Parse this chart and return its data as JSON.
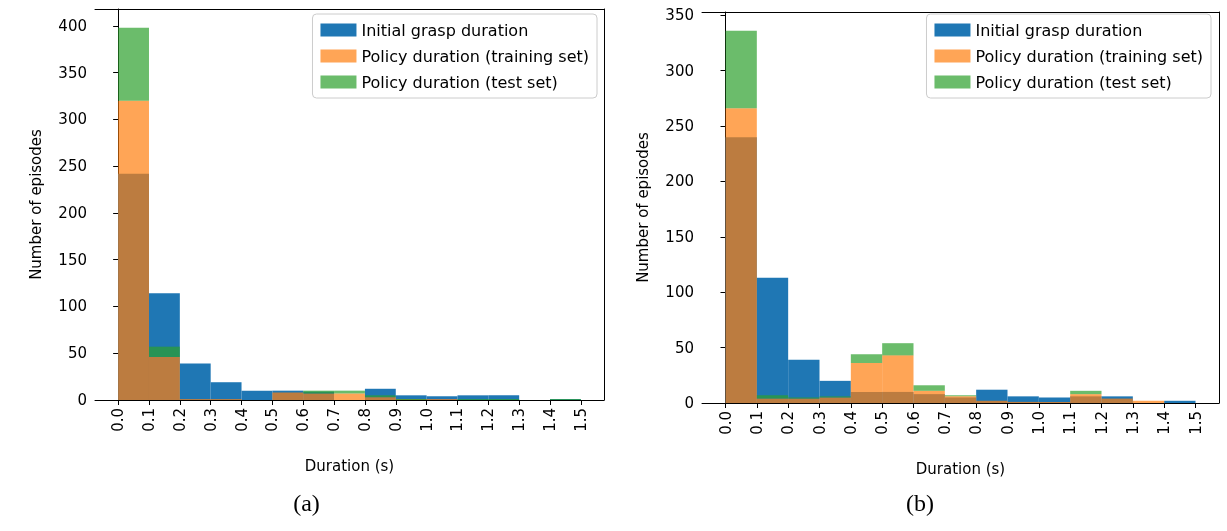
{
  "chart_data": [
    {
      "type": "histogram",
      "xlabel": "Duration (s)",
      "ylabel": "Number of episodes",
      "annotations": [
        "(a)"
      ],
      "bins": [
        0,
        0.1,
        0.2,
        0.3,
        0.4,
        0.5,
        0.6,
        0.7,
        0.8,
        0.9,
        1.0,
        1.1,
        1.2,
        1.3,
        1.4,
        1.5
      ],
      "series": [
        {
          "name": "Initial grasp duration",
          "color": "#1f77b4",
          "values": [
            242,
            114,
            39,
            19,
            10,
            10,
            9,
            null,
            12,
            5,
            4,
            5,
            5,
            0,
            1
          ]
        },
        {
          "name": "Policy duration (training set)",
          "color": "#ff7f0e",
          "values": [
            320,
            46,
            1,
            1,
            0,
            8,
            7,
            7,
            3,
            1,
            1,
            0,
            0,
            0,
            0
          ]
        },
        {
          "name": "Policy duration (test set)",
          "color": "#2ca02c",
          "base": [
            320,
            46,
            null,
            null,
            null,
            null,
            7,
            7,
            3,
            null,
            null,
            null,
            null,
            null,
            null
          ],
          "values": [
            78,
            11,
            0,
            0,
            0,
            0,
            3,
            3,
            2,
            1,
            0,
            1,
            1,
            0,
            1
          ]
        }
      ],
      "xlim": [
        -0.075,
        1.575
      ],
      "ylim": [
        0,
        418
      ],
      "xticks": [
        {
          "value": 0,
          "label": "0.0"
        },
        {
          "value": 0.1,
          "label": "0.1"
        },
        {
          "value": 0.2,
          "label": "0.2"
        },
        {
          "value": 0.3,
          "label": "0.3"
        },
        {
          "value": 0.4,
          "label": "0.4"
        },
        {
          "value": 0.5,
          "label": "0.5"
        },
        {
          "value": 0.6,
          "label": "0.6"
        },
        {
          "value": 0.7,
          "label": "0.7"
        },
        {
          "value": 0.8,
          "label": "0.8"
        },
        {
          "value": 0.9,
          "label": "0.9"
        },
        {
          "value": 1.0,
          "label": "1.0"
        },
        {
          "value": 1.1,
          "label": "1.1"
        },
        {
          "value": 1.2,
          "label": "1.2"
        },
        {
          "value": 1.3,
          "label": "1.3"
        },
        {
          "value": 1.4,
          "label": "1.4"
        },
        {
          "value": 1.5,
          "label": "1.5"
        }
      ],
      "yticks": [
        0,
        50,
        100,
        150,
        200,
        250,
        300,
        350,
        400
      ],
      "legend": "top right",
      "grid": false
    },
    {
      "type": "histogram",
      "xlabel": "Duration (s)",
      "ylabel": "Number of episodes",
      "annotations": [
        "(b)"
      ],
      "bins": [
        0,
        0.1,
        0.2,
        0.3,
        0.4,
        0.5,
        0.6,
        0.7,
        0.8,
        0.9,
        1.0,
        1.1,
        1.2,
        1.3,
        1.4,
        1.5
      ],
      "series": [
        {
          "name": "Initial grasp duration",
          "color": "#1f77b4",
          "values": [
            240,
            113,
            39,
            20,
            10,
            10,
            8,
            5,
            12,
            6,
            5,
            6,
            6,
            null,
            2
          ]
        },
        {
          "name": "Policy duration (training set)",
          "color": "#ff7f0e",
          "values": [
            266,
            4,
            4,
            5,
            36,
            43,
            11,
            6,
            2,
            1,
            1,
            8,
            4,
            2,
            0
          ]
        },
        {
          "name": "Policy duration (test set)",
          "color": "#2ca02c",
          "base": [
            266,
            4,
            4,
            5,
            36,
            43,
            11,
            6,
            null,
            null,
            null,
            8,
            null,
            null,
            null
          ],
          "values": [
            70,
            3,
            1,
            1,
            8,
            11,
            5,
            1,
            0,
            0,
            0,
            3,
            0,
            0,
            0
          ]
        }
      ],
      "xlim": [
        -0.075,
        1.575
      ],
      "ylim": [
        0,
        353
      ],
      "xticks": [
        {
          "value": 0,
          "label": "0.0"
        },
        {
          "value": 0.1,
          "label": "0.1"
        },
        {
          "value": 0.2,
          "label": "0.2"
        },
        {
          "value": 0.3,
          "label": "0.3"
        },
        {
          "value": 0.4,
          "label": "0.4"
        },
        {
          "value": 0.5,
          "label": "0.5"
        },
        {
          "value": 0.6,
          "label": "0.6"
        },
        {
          "value": 0.7,
          "label": "0.7"
        },
        {
          "value": 0.8,
          "label": "0.8"
        },
        {
          "value": 0.9,
          "label": "0.9"
        },
        {
          "value": 1.0,
          "label": "1.0"
        },
        {
          "value": 1.1,
          "label": "1.1"
        },
        {
          "value": 1.2,
          "label": "1.2"
        },
        {
          "value": 1.3,
          "label": "1.3"
        },
        {
          "value": 1.4,
          "label": "1.4"
        },
        {
          "value": 1.5,
          "label": "1.5"
        }
      ],
      "yticks": [
        0,
        50,
        100,
        150,
        200,
        250,
        300,
        350
      ],
      "legend": "top right",
      "grid": false
    }
  ]
}
